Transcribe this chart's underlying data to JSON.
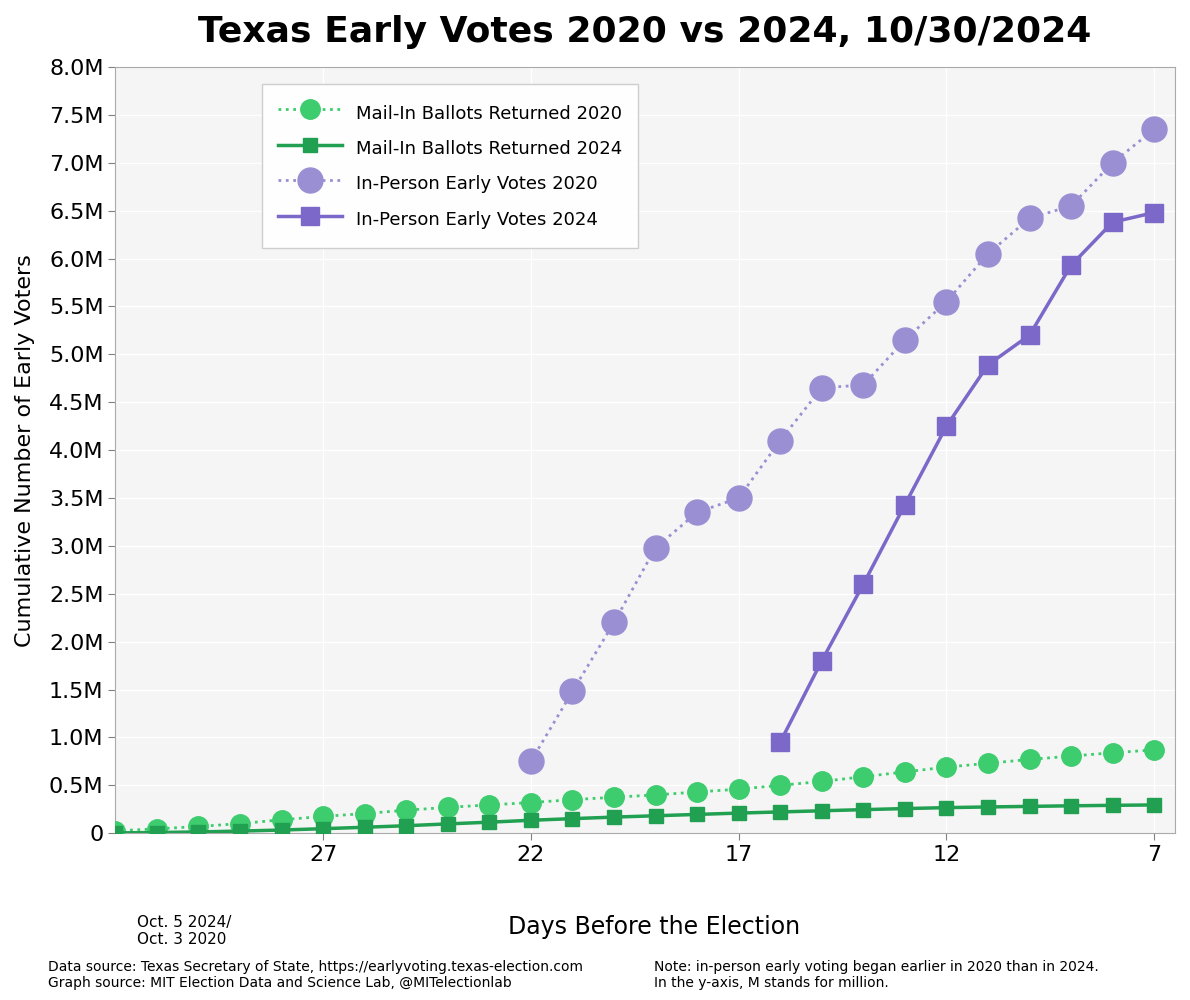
{
  "title": "Texas Early Votes 2020 vs 2024, 10/30/2024",
  "ylabel": "Cumulative Number of Early Voters",
  "xlabel": "Days Before the Election",
  "xlabel_note": "Oct. 5 2024/\nOct. 3 2020",
  "ylim": [
    0,
    8000000
  ],
  "yticks": [
    0,
    500000,
    1000000,
    1500000,
    2000000,
    2500000,
    3000000,
    3500000,
    4000000,
    4500000,
    5000000,
    5500000,
    6000000,
    6500000,
    7000000,
    7500000,
    8000000
  ],
  "xticks": [
    7,
    12,
    17,
    22,
    27
  ],
  "xlim": [
    6.5,
    32
  ],
  "footnote_left": "Data source: Texas Secretary of State, https://earlyvoting.texas-election.com\nGraph source: MIT Election Data and Science Lab, @MITelectionlab",
  "footnote_right": "Note: in-person early voting began earlier in 2020 than in 2024.\nIn the y-axis, M stands for million.",
  "mail_2020_x": [
    32,
    31,
    30,
    29,
    28,
    27,
    26,
    25,
    24,
    23,
    22,
    21,
    20,
    19,
    18,
    17,
    16,
    15,
    14,
    13,
    12,
    11,
    10,
    9,
    8,
    7
  ],
  "mail_2020_y": [
    25000,
    45000,
    70000,
    100000,
    140000,
    175000,
    205000,
    240000,
    270000,
    295000,
    320000,
    350000,
    375000,
    400000,
    430000,
    460000,
    500000,
    540000,
    590000,
    640000,
    690000,
    730000,
    770000,
    805000,
    840000,
    870000
  ],
  "mail_2024_x": [
    32,
    31,
    30,
    29,
    28,
    27,
    26,
    25,
    24,
    23,
    22,
    21,
    20,
    19,
    18,
    17,
    16,
    15,
    14,
    13,
    12,
    11,
    10,
    9,
    8,
    7
  ],
  "mail_2024_y": [
    3000,
    7000,
    13000,
    22000,
    33000,
    47000,
    62000,
    78000,
    97000,
    115000,
    135000,
    152000,
    168000,
    182000,
    196000,
    210000,
    222000,
    234000,
    246000,
    257000,
    267000,
    274000,
    280000,
    286000,
    291000,
    295000
  ],
  "inperson_2020_x": [
    22,
    21,
    20,
    19,
    18,
    17,
    16,
    15,
    14,
    13,
    12,
    11,
    10,
    9,
    8,
    7
  ],
  "inperson_2020_y": [
    750000,
    1480000,
    2200000,
    2980000,
    3350000,
    3500000,
    4100000,
    4650000,
    4680000,
    5150000,
    5550000,
    6050000,
    6420000,
    6550000,
    7000000,
    7350000
  ],
  "inperson_2024_x": [
    16,
    15,
    14,
    13,
    12,
    11,
    10,
    9,
    8,
    7
  ],
  "inperson_2024_y": [
    950000,
    1800000,
    2600000,
    3430000,
    4250000,
    4890000,
    5200000,
    5930000,
    6380000,
    6480000
  ],
  "color_mail_2020": "#3dcd6e",
  "color_mail_2024": "#20a050",
  "color_inperson_2020": "#9b8fd4",
  "color_inperson_2024": "#7b68c8",
  "bg_color": "#f5f5f5",
  "legend_labels": [
    "Mail-In Ballots Returned 2020",
    "Mail-In Ballots Returned 2024",
    "In-Person Early Votes 2020",
    "In-Person Early Votes 2024"
  ]
}
